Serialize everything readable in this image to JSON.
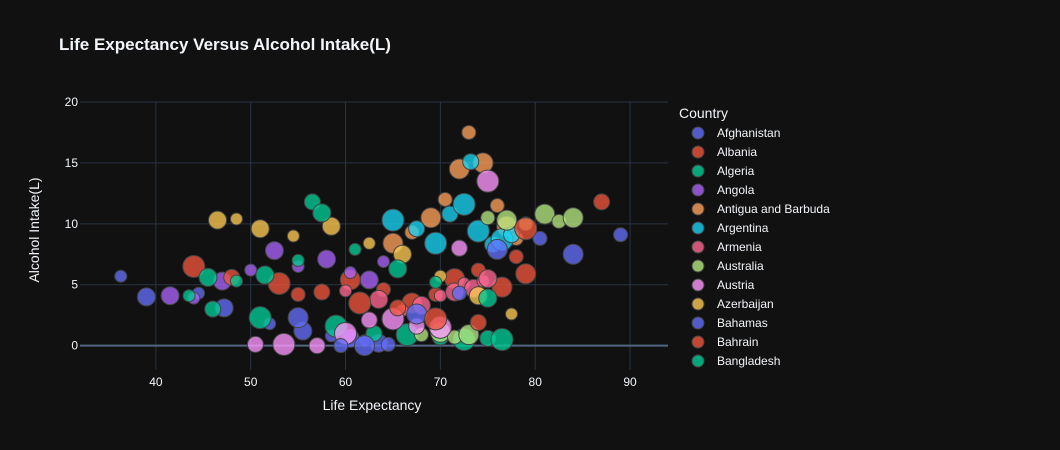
{
  "chart_data": {
    "type": "scatter",
    "title": "Life Expectancy Versus Alcohol Intake(L)",
    "xlabel": "Life Expectancy",
    "ylabel": "Alcohol Intake(L)",
    "xlim": [
      32,
      94
    ],
    "ylim": [
      -2,
      20
    ],
    "xticks": [
      40,
      50,
      60,
      70,
      80,
      90
    ],
    "yticks": [
      0,
      5,
      10,
      15,
      20
    ],
    "grid": true,
    "legend": {
      "title": "Country",
      "position": "right"
    },
    "series": [
      {
        "name": "Afghanistan",
        "color": "#636efa",
        "points": [
          [
            36.3,
            5.7
          ],
          [
            39.0,
            4.0
          ],
          [
            44.5,
            4.3
          ],
          [
            47.2,
            3.1
          ],
          [
            52.0,
            1.8
          ],
          [
            55.5,
            1.2
          ],
          [
            58.5,
            0.8
          ],
          [
            60.5,
            0.6
          ],
          [
            62.0,
            0.4
          ],
          [
            63.5,
            0.2
          ]
        ]
      },
      {
        "name": "Albania",
        "color": "#ef553b",
        "points": [
          [
            55.0,
            4.2
          ],
          [
            60.5,
            5.4
          ],
          [
            64.0,
            4.6
          ],
          [
            67.0,
            3.5
          ],
          [
            69.5,
            4.2
          ],
          [
            71.5,
            5.5
          ],
          [
            74.0,
            6.2
          ],
          [
            76.5,
            4.8
          ],
          [
            78.0,
            7.3
          ],
          [
            79.0,
            5.9
          ]
        ]
      },
      {
        "name": "Algeria",
        "color": "#00cc96",
        "points": [
          [
            46.0,
            3.0
          ],
          [
            51.0,
            2.3
          ],
          [
            56.5,
            11.8
          ],
          [
            59.0,
            1.6
          ],
          [
            63.0,
            1.0
          ],
          [
            66.5,
            0.9
          ],
          [
            70.0,
            0.7
          ],
          [
            72.5,
            0.5
          ],
          [
            75.0,
            0.6
          ],
          [
            76.5,
            0.5
          ]
        ]
      },
      {
        "name": "Angola",
        "color": "#ab63fa",
        "points": [
          [
            41.5,
            4.1
          ],
          [
            44.0,
            3.9
          ],
          [
            47.0,
            5.3
          ],
          [
            50.0,
            6.2
          ],
          [
            52.5,
            7.8
          ],
          [
            55.0,
            6.5
          ],
          [
            58.0,
            7.1
          ],
          [
            60.5,
            6.0
          ],
          [
            62.5,
            5.4
          ],
          [
            64.0,
            6.9
          ]
        ]
      },
      {
        "name": "Antigua and Barbuda",
        "color": "#ffa15a",
        "points": [
          [
            65.0,
            8.4
          ],
          [
            67.0,
            9.3
          ],
          [
            69.0,
            10.5
          ],
          [
            70.5,
            12.0
          ],
          [
            72.0,
            14.5
          ],
          [
            73.0,
            17.5
          ],
          [
            74.5,
            15.0
          ],
          [
            76.0,
            11.5
          ],
          [
            77.0,
            9.8
          ],
          [
            78.0,
            8.8
          ]
        ]
      },
      {
        "name": "Argentina",
        "color": "#19d3f3",
        "points": [
          [
            65.0,
            10.3
          ],
          [
            67.5,
            9.6
          ],
          [
            69.5,
            8.4
          ],
          [
            71.0,
            10.8
          ],
          [
            72.5,
            11.6
          ],
          [
            73.2,
            15.1
          ],
          [
            74.0,
            9.4
          ],
          [
            75.5,
            8.3
          ],
          [
            76.5,
            8.7
          ],
          [
            77.5,
            9.1
          ]
        ]
      },
      {
        "name": "Armenia",
        "color": "#ff6692",
        "points": [
          [
            60.0,
            4.5
          ],
          [
            63.5,
            3.8
          ],
          [
            66.0,
            2.9
          ],
          [
            68.0,
            3.3
          ],
          [
            70.0,
            4.1
          ],
          [
            71.5,
            4.4
          ],
          [
            72.5,
            5.1
          ],
          [
            73.5,
            4.7
          ],
          [
            74.5,
            5.3
          ],
          [
            75.0,
            5.5
          ]
        ]
      },
      {
        "name": "Australia",
        "color": "#b6e880",
        "points": [
          [
            68.0,
            0.9
          ],
          [
            70.0,
            1.1
          ],
          [
            71.5,
            0.7
          ],
          [
            73.0,
            0.9
          ],
          [
            75.0,
            10.5
          ],
          [
            77.0,
            10.3
          ],
          [
            79.0,
            10.0
          ],
          [
            81.0,
            10.8
          ],
          [
            82.5,
            10.2
          ],
          [
            84.0,
            10.5
          ]
        ]
      },
      {
        "name": "Austria",
        "color": "#ff97ff",
        "points": [
          [
            50.5,
            0.1
          ],
          [
            53.5,
            0.1
          ],
          [
            57.0,
            0.0
          ],
          [
            60.0,
            1.0
          ],
          [
            62.5,
            2.1
          ],
          [
            65.0,
            2.2
          ],
          [
            67.5,
            1.6
          ],
          [
            70.0,
            1.5
          ],
          [
            72.0,
            8.0
          ],
          [
            75.0,
            13.5
          ]
        ]
      },
      {
        "name": "Azerbaijan",
        "color": "#fecb52",
        "points": [
          [
            46.5,
            10.3
          ],
          [
            48.5,
            10.4
          ],
          [
            51.0,
            9.6
          ],
          [
            54.5,
            9.0
          ],
          [
            58.5,
            9.8
          ],
          [
            62.5,
            8.4
          ],
          [
            66.0,
            7.5
          ],
          [
            70.0,
            5.7
          ],
          [
            74.0,
            4.1
          ],
          [
            77.5,
            2.6
          ]
        ]
      },
      {
        "name": "Bahamas",
        "color": "#636efa",
        "points": [
          [
            55.0,
            2.3
          ],
          [
            59.5,
            0.0
          ],
          [
            62.0,
            0.0
          ],
          [
            64.5,
            0.1
          ],
          [
            67.5,
            2.6
          ],
          [
            72.0,
            4.3
          ],
          [
            76.0,
            7.9
          ],
          [
            80.5,
            8.8
          ],
          [
            84.0,
            7.5
          ],
          [
            89.0,
            9.1
          ]
        ]
      },
      {
        "name": "Bahrain",
        "color": "#ef553b",
        "points": [
          [
            44.0,
            6.5
          ],
          [
            48.0,
            5.6
          ],
          [
            53.0,
            5.1
          ],
          [
            57.5,
            4.4
          ],
          [
            61.5,
            3.5
          ],
          [
            65.5,
            3.1
          ],
          [
            69.5,
            2.2
          ],
          [
            74.0,
            1.9
          ],
          [
            79.0,
            9.6
          ],
          [
            87.0,
            11.8
          ]
        ]
      },
      {
        "name": "Bangladesh",
        "color": "#00cc96",
        "points": [
          [
            43.5,
            4.1
          ],
          [
            45.5,
            5.6
          ],
          [
            48.5,
            5.3
          ],
          [
            51.5,
            5.8
          ],
          [
            55.0,
            7.0
          ],
          [
            57.5,
            10.9
          ],
          [
            61.0,
            7.9
          ],
          [
            65.5,
            6.3
          ],
          [
            69.5,
            5.2
          ],
          [
            75.0,
            3.9
          ]
        ]
      }
    ]
  }
}
